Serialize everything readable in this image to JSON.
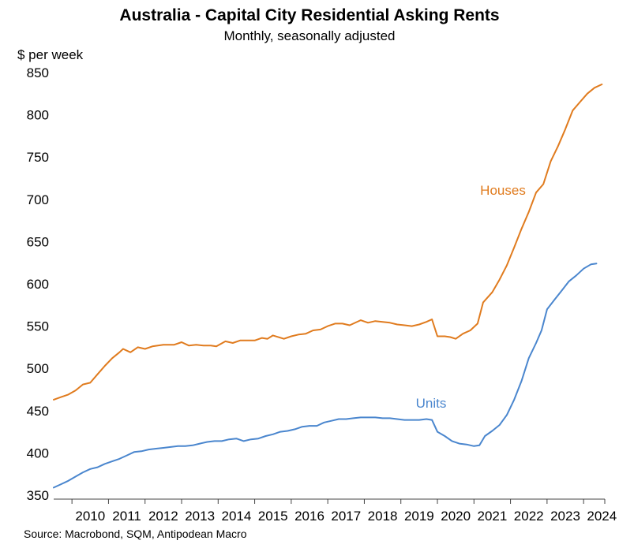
{
  "chart_data": {
    "type": "line",
    "title": "Australia - Capital City Residential Asking Rents",
    "subtitle": "Monthly, seasonally adjusted",
    "ylabel": "$ per week",
    "xlabel": "",
    "source": "Source: Macrobond, SQM, Antipodean Macro",
    "ylim": [
      350,
      850
    ],
    "yticks": [
      350,
      400,
      450,
      500,
      550,
      600,
      650,
      700,
      750,
      800,
      850
    ],
    "xlim": [
      2009.5,
      2024.58
    ],
    "xticks": [
      "2010",
      "2011",
      "2012",
      "2013",
      "2014",
      "2015",
      "2016",
      "2017",
      "2018",
      "2019",
      "2020",
      "2021",
      "2022",
      "2023",
      "2024"
    ],
    "grid": false,
    "legend": "inline labels",
    "series": [
      {
        "name": "Houses",
        "color": "#E07B1E",
        "points": [
          [
            2009.5,
            463
          ],
          [
            2009.7,
            466
          ],
          [
            2009.9,
            469
          ],
          [
            2010.1,
            474
          ],
          [
            2010.3,
            481
          ],
          [
            2010.5,
            483
          ],
          [
            2010.7,
            493
          ],
          [
            2010.9,
            503
          ],
          [
            2011.1,
            512
          ],
          [
            2011.3,
            519
          ],
          [
            2011.4,
            523
          ],
          [
            2011.6,
            519
          ],
          [
            2011.8,
            525
          ],
          [
            2012.0,
            523
          ],
          [
            2012.2,
            526
          ],
          [
            2012.5,
            528
          ],
          [
            2012.8,
            528
          ],
          [
            2013.0,
            531
          ],
          [
            2013.2,
            527
          ],
          [
            2013.4,
            528
          ],
          [
            2013.6,
            527
          ],
          [
            2013.8,
            527
          ],
          [
            2013.95,
            526
          ],
          [
            2014.2,
            532
          ],
          [
            2014.4,
            530
          ],
          [
            2014.6,
            533
          ],
          [
            2014.8,
            533
          ],
          [
            2015.0,
            533
          ],
          [
            2015.2,
            536
          ],
          [
            2015.35,
            535
          ],
          [
            2015.5,
            539
          ],
          [
            2015.8,
            535
          ],
          [
            2016.0,
            538
          ],
          [
            2016.2,
            540
          ],
          [
            2016.4,
            541
          ],
          [
            2016.6,
            545
          ],
          [
            2016.8,
            546
          ],
          [
            2017.0,
            550
          ],
          [
            2017.2,
            553
          ],
          [
            2017.4,
            553
          ],
          [
            2017.6,
            551
          ],
          [
            2017.9,
            557
          ],
          [
            2018.1,
            554
          ],
          [
            2018.3,
            556
          ],
          [
            2018.5,
            555
          ],
          [
            2018.7,
            554
          ],
          [
            2018.9,
            552
          ],
          [
            2019.1,
            551
          ],
          [
            2019.3,
            550
          ],
          [
            2019.5,
            552
          ],
          [
            2019.7,
            555
          ],
          [
            2019.85,
            558
          ],
          [
            2020.0,
            538
          ],
          [
            2020.2,
            538
          ],
          [
            2020.35,
            537
          ],
          [
            2020.5,
            535
          ],
          [
            2020.7,
            541
          ],
          [
            2020.9,
            545
          ],
          [
            2021.1,
            553
          ],
          [
            2021.25,
            578
          ],
          [
            2021.5,
            590
          ],
          [
            2021.7,
            605
          ],
          [
            2021.9,
            622
          ],
          [
            2022.1,
            643
          ],
          [
            2022.3,
            665
          ],
          [
            2022.5,
            685
          ],
          [
            2022.7,
            708
          ],
          [
            2022.9,
            718
          ],
          [
            2023.1,
            745
          ],
          [
            2023.3,
            763
          ],
          [
            2023.5,
            783
          ],
          [
            2023.7,
            805
          ],
          [
            2023.9,
            815
          ],
          [
            2024.1,
            825
          ],
          [
            2024.3,
            832
          ],
          [
            2024.5,
            836
          ]
        ]
      },
      {
        "name": "Units",
        "color": "#4A86CE",
        "points": [
          [
            2009.5,
            359
          ],
          [
            2009.7,
            363
          ],
          [
            2009.9,
            367
          ],
          [
            2010.1,
            372
          ],
          [
            2010.3,
            377
          ],
          [
            2010.5,
            381
          ],
          [
            2010.7,
            383
          ],
          [
            2010.9,
            387
          ],
          [
            2011.1,
            390
          ],
          [
            2011.3,
            393
          ],
          [
            2011.5,
            397
          ],
          [
            2011.7,
            401
          ],
          [
            2011.9,
            402
          ],
          [
            2012.1,
            404
          ],
          [
            2012.3,
            405
          ],
          [
            2012.5,
            406
          ],
          [
            2012.7,
            407
          ],
          [
            2012.9,
            408
          ],
          [
            2013.1,
            408
          ],
          [
            2013.3,
            409
          ],
          [
            2013.5,
            411
          ],
          [
            2013.7,
            413
          ],
          [
            2013.9,
            414
          ],
          [
            2014.1,
            414
          ],
          [
            2014.3,
            416
          ],
          [
            2014.5,
            417
          ],
          [
            2014.7,
            414
          ],
          [
            2014.9,
            416
          ],
          [
            2015.1,
            417
          ],
          [
            2015.3,
            420
          ],
          [
            2015.5,
            422
          ],
          [
            2015.7,
            425
          ],
          [
            2015.9,
            426
          ],
          [
            2016.1,
            428
          ],
          [
            2016.3,
            431
          ],
          [
            2016.5,
            432
          ],
          [
            2016.7,
            432
          ],
          [
            2016.9,
            436
          ],
          [
            2017.1,
            438
          ],
          [
            2017.3,
            440
          ],
          [
            2017.5,
            440
          ],
          [
            2017.7,
            441
          ],
          [
            2017.9,
            442
          ],
          [
            2018.1,
            442
          ],
          [
            2018.3,
            442
          ],
          [
            2018.5,
            441
          ],
          [
            2018.7,
            441
          ],
          [
            2018.9,
            440
          ],
          [
            2019.1,
            439
          ],
          [
            2019.3,
            439
          ],
          [
            2019.5,
            439
          ],
          [
            2019.7,
            440
          ],
          [
            2019.85,
            439
          ],
          [
            2020.0,
            425
          ],
          [
            2020.2,
            420
          ],
          [
            2020.4,
            414
          ],
          [
            2020.6,
            411
          ],
          [
            2020.8,
            410
          ],
          [
            2021.0,
            408
          ],
          [
            2021.15,
            409
          ],
          [
            2021.3,
            420
          ],
          [
            2021.5,
            426
          ],
          [
            2021.7,
            433
          ],
          [
            2021.9,
            445
          ],
          [
            2022.1,
            463
          ],
          [
            2022.3,
            485
          ],
          [
            2022.5,
            512
          ],
          [
            2022.7,
            530
          ],
          [
            2022.85,
            545
          ],
          [
            2023.0,
            570
          ],
          [
            2023.2,
            581
          ],
          [
            2023.4,
            592
          ],
          [
            2023.6,
            603
          ],
          [
            2023.8,
            610
          ],
          [
            2024.0,
            618
          ],
          [
            2024.2,
            623
          ],
          [
            2024.35,
            624
          ]
        ]
      }
    ]
  }
}
